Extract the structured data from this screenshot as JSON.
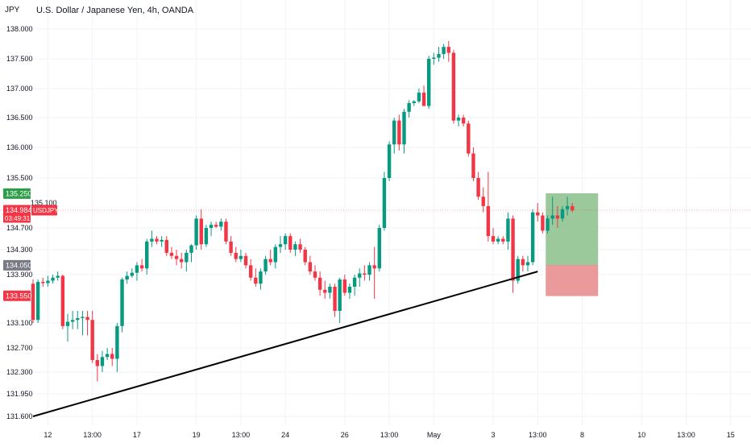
{
  "header": {
    "currency": "JPY",
    "title": "U.S. Dollar / Japanese Yen, 4h, OANDA"
  },
  "colors": {
    "up": "#089981",
    "down": "#f23645",
    "profit_zone": "#9bc99b",
    "loss_zone": "#eb9a9c",
    "price_tag": "#f23645",
    "target_tag": "#2e9e4a",
    "entry_tag": "#787b86",
    "stop_tag": "#f23645",
    "trendline": "#000000"
  },
  "price_tags": {
    "target": "135.250",
    "current": "134.984",
    "symbol": "USDJPY",
    "countdown": "03:49:31",
    "entry": "134.050",
    "stop": "133.550",
    "hidden": "135.100"
  },
  "chart_data": {
    "type": "candlestick",
    "title": "U.S. Dollar / Japanese Yen, 4h, OANDA",
    "y_ticks": [
      "138.000",
      "137.500",
      "137.000",
      "136.500",
      "136.000",
      "135.500",
      "134.700",
      "134.300",
      "133.900",
      "133.100",
      "132.700",
      "132.300",
      "131.950",
      "131.600"
    ],
    "y_tick_values": [
      138.0,
      137.5,
      137.0,
      136.5,
      136.0,
      135.5,
      134.7,
      134.3,
      133.9,
      133.1,
      132.7,
      132.3,
      131.95,
      131.6
    ],
    "x_ticks": [
      "12",
      "13:00",
      "17",
      "19",
      "13:00",
      "24",
      "26",
      "13:00",
      "May",
      "3",
      "13:00",
      "8",
      "10",
      "13:00",
      "15"
    ],
    "x_tick_index": [
      3,
      12,
      21,
      33,
      42,
      51,
      63,
      72,
      81,
      93,
      102,
      111,
      123,
      132,
      141
    ],
    "candles": [
      [
        133.75,
        133.82,
        133.1,
        133.15
      ],
      [
        133.15,
        133.82,
        133.1,
        133.78
      ],
      [
        133.78,
        133.85,
        133.7,
        133.76
      ],
      [
        133.76,
        133.88,
        133.7,
        133.8
      ],
      [
        133.8,
        133.9,
        133.75,
        133.85
      ],
      [
        133.85,
        133.95,
        133.8,
        133.88
      ],
      [
        133.88,
        133.9,
        133.0,
        133.05
      ],
      [
        133.05,
        133.25,
        132.8,
        133.12
      ],
      [
        133.12,
        133.3,
        133.0,
        133.15
      ],
      [
        133.15,
        133.3,
        133.0,
        133.18
      ],
      [
        133.18,
        133.3,
        132.9,
        133.2
      ],
      [
        133.2,
        133.3,
        132.9,
        133.15
      ],
      [
        133.15,
        133.3,
        132.45,
        132.5
      ],
      [
        132.5,
        132.6,
        132.15,
        132.4
      ],
      [
        132.4,
        132.65,
        132.3,
        132.55
      ],
      [
        132.55,
        132.7,
        132.5,
        132.6
      ],
      [
        132.6,
        132.7,
        132.4,
        132.52
      ],
      [
        132.52,
        133.1,
        132.3,
        133.05
      ],
      [
        133.05,
        133.85,
        132.95,
        133.82
      ],
      [
        133.82,
        133.95,
        133.75,
        133.88
      ],
      [
        133.88,
        134.0,
        133.85,
        133.93
      ],
      [
        133.93,
        134.1,
        133.8,
        134.05
      ],
      [
        134.05,
        134.15,
        133.95,
        134.0
      ],
      [
        134.0,
        134.5,
        133.9,
        134.45
      ],
      [
        134.45,
        134.65,
        134.35,
        134.5
      ],
      [
        134.5,
        134.55,
        134.4,
        134.45
      ],
      [
        134.45,
        134.55,
        134.35,
        134.48
      ],
      [
        134.48,
        134.55,
        134.2,
        134.25
      ],
      [
        134.25,
        134.35,
        134.15,
        134.2
      ],
      [
        134.2,
        134.3,
        134.05,
        134.15
      ],
      [
        134.15,
        134.25,
        134.0,
        134.1
      ],
      [
        134.1,
        134.3,
        133.95,
        134.25
      ],
      [
        134.25,
        134.4,
        134.1,
        134.38
      ],
      [
        134.38,
        134.9,
        134.3,
        134.85
      ],
      [
        134.85,
        135.0,
        134.3,
        134.4
      ],
      [
        134.4,
        134.75,
        134.35,
        134.7
      ],
      [
        134.7,
        134.8,
        134.55,
        134.75
      ],
      [
        134.75,
        134.8,
        134.7,
        134.72
      ],
      [
        134.72,
        134.85,
        134.65,
        134.8
      ],
      [
        134.8,
        134.85,
        134.4,
        134.45
      ],
      [
        134.45,
        134.55,
        134.2,
        134.25
      ],
      [
        134.25,
        134.35,
        134.1,
        134.15
      ],
      [
        134.15,
        134.3,
        134.1,
        134.2
      ],
      [
        134.2,
        134.25,
        134.0,
        134.05
      ],
      [
        134.05,
        134.15,
        133.8,
        133.85
      ],
      [
        133.85,
        134.0,
        133.7,
        133.75
      ],
      [
        133.75,
        134.0,
        133.65,
        133.95
      ],
      [
        133.95,
        134.2,
        133.9,
        134.15
      ],
      [
        134.15,
        134.3,
        134.05,
        134.1
      ],
      [
        134.1,
        134.4,
        134.0,
        134.35
      ],
      [
        134.35,
        134.55,
        134.25,
        134.4
      ],
      [
        134.4,
        134.6,
        134.3,
        134.55
      ],
      [
        134.55,
        134.6,
        134.25,
        134.3
      ],
      [
        134.3,
        134.45,
        134.2,
        134.4
      ],
      [
        134.4,
        134.5,
        134.25,
        134.3
      ],
      [
        134.3,
        134.35,
        134.05,
        134.1
      ],
      [
        134.1,
        134.2,
        133.9,
        133.95
      ],
      [
        133.95,
        134.05,
        133.8,
        133.85
      ],
      [
        133.85,
        133.95,
        133.55,
        133.65
      ],
      [
        133.65,
        133.8,
        133.5,
        133.6
      ],
      [
        133.6,
        133.75,
        133.5,
        133.7
      ],
      [
        133.7,
        133.75,
        133.2,
        133.3
      ],
      [
        133.3,
        133.85,
        133.1,
        133.82
      ],
      [
        133.82,
        133.9,
        133.55,
        133.6
      ],
      [
        133.6,
        133.75,
        133.5,
        133.7
      ],
      [
        133.7,
        133.9,
        133.55,
        133.85
      ],
      [
        133.85,
        134.0,
        133.7,
        133.92
      ],
      [
        133.92,
        134.05,
        133.8,
        133.9
      ],
      [
        133.9,
        134.1,
        133.8,
        134.05
      ],
      [
        134.05,
        134.35,
        133.5,
        134.0
      ],
      [
        134.0,
        134.75,
        133.95,
        134.7
      ],
      [
        134.7,
        135.6,
        134.65,
        135.5
      ],
      [
        135.5,
        136.1,
        135.45,
        136.05
      ],
      [
        136.05,
        136.5,
        135.9,
        136.45
      ],
      [
        136.45,
        136.55,
        135.95,
        136.05
      ],
      [
        136.05,
        136.65,
        135.9,
        136.6
      ],
      [
        136.6,
        136.8,
        136.5,
        136.75
      ],
      [
        136.75,
        136.8,
        136.7,
        136.78
      ],
      [
        136.78,
        137.0,
        136.75,
        136.93
      ],
      [
        136.93,
        137.05,
        136.7,
        136.7
      ],
      [
        136.7,
        137.55,
        136.65,
        137.5
      ],
      [
        137.5,
        137.6,
        137.4,
        137.52
      ],
      [
        137.52,
        137.7,
        137.45,
        137.58
      ],
      [
        137.58,
        137.75,
        137.5,
        137.7
      ],
      [
        137.7,
        137.8,
        137.45,
        137.6
      ],
      [
        137.6,
        137.65,
        136.4,
        136.45
      ],
      [
        136.45,
        136.55,
        136.35,
        136.5
      ],
      [
        136.5,
        136.55,
        136.35,
        136.4
      ],
      [
        136.4,
        136.45,
        135.85,
        135.9
      ],
      [
        135.9,
        136.0,
        135.45,
        135.5
      ],
      [
        135.5,
        135.6,
        135.15,
        135.2
      ],
      [
        135.2,
        135.35,
        134.95,
        135.05
      ],
      [
        135.05,
        135.6,
        134.45,
        134.55
      ],
      [
        134.55,
        134.7,
        134.4,
        134.45
      ],
      [
        134.45,
        134.55,
        134.4,
        134.5
      ],
      [
        134.5,
        134.55,
        134.4,
        134.45
      ],
      [
        134.45,
        134.95,
        134.3,
        134.85
      ],
      [
        134.85,
        134.9,
        133.6,
        133.8
      ],
      [
        133.8,
        134.2,
        133.75,
        134.15
      ],
      [
        134.15,
        134.2,
        133.95,
        134.05
      ],
      [
        134.05,
        134.2,
        133.95,
        134.1
      ],
      [
        134.1,
        135.0,
        134.05,
        134.95
      ],
      [
        134.95,
        135.1,
        134.8,
        134.9
      ],
      [
        134.9,
        134.95,
        134.6,
        134.65
      ],
      [
        134.65,
        134.9,
        134.6,
        134.85
      ],
      [
        134.85,
        135.2,
        134.75,
        134.9
      ],
      [
        134.9,
        135.05,
        134.7,
        134.85
      ],
      [
        134.85,
        135.05,
        134.8,
        135.0
      ],
      [
        135.0,
        135.2,
        134.9,
        135.05
      ],
      [
        135.05,
        135.1,
        134.95,
        134.98
      ]
    ],
    "trendline": {
      "start": [
        0,
        131.6
      ],
      "end": [
        102,
        133.95
      ]
    },
    "position": {
      "target": 135.25,
      "entry": 134.05,
      "stop": 133.55,
      "start_index": 104,
      "end_index": 114
    }
  }
}
